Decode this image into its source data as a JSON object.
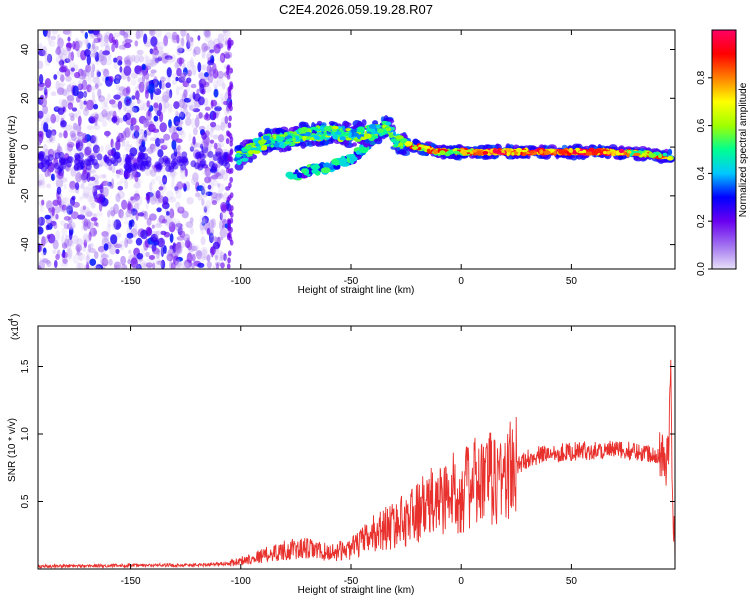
{
  "colors": {
    "axis": "#000000",
    "snr_line": "#e8302c",
    "scatter_purple": "#8a2be2",
    "colorbar_stops": [
      "#e8e0f8",
      "#a070f0",
      "#6a00f0",
      "#0000ff",
      "#00c8ff",
      "#00ff90",
      "#a0ff00",
      "#ffff00",
      "#ff8000",
      "#ff0000",
      "#ff0066"
    ]
  },
  "chart_data": [
    {
      "id": "spectrogram",
      "type": "heatmap",
      "title": "C2E4.2026.059.19.28.R07",
      "xlabel": "Height of straight line (km)",
      "ylabel": "Frequency (Hz)",
      "xlim": [
        -192,
        97
      ],
      "ylim": [
        -50,
        48
      ],
      "xticks": [
        -150,
        -100,
        -50,
        0,
        50
      ],
      "xtick_labels": [
        "-150",
        "-100",
        "-50",
        "0",
        "50"
      ],
      "yticks": [
        -40,
        -20,
        0,
        20,
        40
      ],
      "ytick_labels": [
        "-40",
        "-20",
        "0",
        "20",
        "40"
      ],
      "noise_region_x": [
        -192,
        -105
      ],
      "signal_track": {
        "x": [
          -102,
          -90,
          -80,
          -70,
          -60,
          -50,
          -40,
          -33,
          -30,
          -20,
          -10,
          0,
          25,
          50,
          70,
          85,
          95
        ],
        "y": [
          -5,
          2,
          3,
          5,
          6,
          5,
          6,
          8,
          3,
          0,
          -2,
          -2,
          -2,
          -2,
          -2,
          -3,
          -4
        ]
      },
      "secondary_track": {
        "x": [
          -78,
          -70,
          -60,
          -50,
          -42,
          -35
        ],
        "y": [
          -12,
          -10,
          -8,
          -5,
          1,
          8
        ]
      },
      "colorbar": {
        "label": "Normalized spectral amplitude",
        "ticks": [
          0.0,
          0.2,
          0.4,
          0.6,
          0.8
        ],
        "tick_labels": [
          "0.0",
          "0.2",
          "0.4",
          "0.6",
          "0.8"
        ],
        "range": [
          0.0,
          1.0
        ]
      }
    },
    {
      "id": "snr",
      "type": "line",
      "xlabel": "Height of straight line (km)",
      "ylabel": "SNR (10 * v/v)",
      "yscale_label": "(x10",
      "yscale_exp": "4",
      "xlim": [
        -192,
        97
      ],
      "ylim": [
        0,
        1.8
      ],
      "xticks": [
        -150,
        -100,
        -50,
        0,
        50
      ],
      "xtick_labels": [
        "-150",
        "-100",
        "-50",
        "0",
        "50"
      ],
      "yticks": [
        0.5,
        1.0,
        1.5
      ],
      "ytick_labels": [
        "0.5",
        "1.0",
        "1.5"
      ],
      "envelope": {
        "x": [
          -192,
          -120,
          -105,
          -100,
          -90,
          -80,
          -70,
          -60,
          -50,
          -45,
          -40,
          -35,
          -30,
          -25,
          -20,
          -15,
          -10,
          -5,
          0,
          5,
          10,
          15,
          20,
          25,
          30,
          40,
          50,
          60,
          70,
          80,
          85,
          90,
          94,
          95,
          96,
          97
        ],
        "y": [
          0.02,
          0.03,
          0.04,
          0.06,
          0.1,
          0.14,
          0.15,
          0.12,
          0.15,
          0.2,
          0.26,
          0.3,
          0.33,
          0.37,
          0.42,
          0.47,
          0.52,
          0.55,
          0.58,
          0.62,
          0.65,
          0.67,
          0.7,
          0.75,
          0.82,
          0.86,
          0.87,
          0.88,
          0.88,
          0.87,
          0.86,
          0.85,
          0.8,
          1.6,
          0.3,
          0.2
        ]
      }
    }
  ]
}
